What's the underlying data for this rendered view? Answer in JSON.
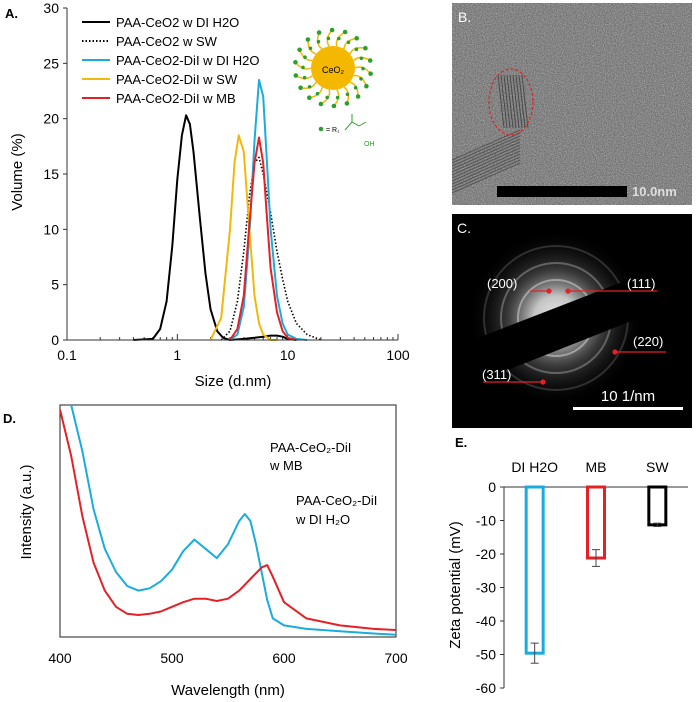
{
  "panels": {
    "a": {
      "label": "A."
    },
    "b": {
      "label": "B.",
      "scale_bar": "10.0nm"
    },
    "c": {
      "label": "C.",
      "scale_bar": "10 1/nm",
      "planes": [
        "(200)",
        "(111)",
        "(220)",
        "(311)"
      ]
    },
    "d": {
      "label": "D.",
      "annotation_mb": {
        "l1": "PAA-CeO₂-DiI",
        "l2": "w MB"
      },
      "annotation_h2o": {
        "l1": "PAA-CeO₂-DiI",
        "l2": "w DI H₂O"
      }
    },
    "e": {
      "label": "E."
    }
  },
  "schematic": {
    "core_label": "CeO₂",
    "key_label": "= R₁",
    "oh_label": "OH"
  },
  "chart_data": [
    {
      "id": "A",
      "type": "line",
      "xscale": "log",
      "xlabel": "Size (d.nm)",
      "ylabel": "Volume (%)",
      "xlim": [
        0.1,
        100
      ],
      "ylim": [
        0,
        30
      ],
      "xticks": [
        0.1,
        1,
        10,
        100
      ],
      "xtick_labels": [
        "0.1",
        "1",
        "10",
        "100"
      ],
      "yticks": [
        0,
        5,
        10,
        15,
        20,
        25,
        30
      ],
      "legend_position": "top-left",
      "series": [
        {
          "name": "PAA-CeO2 w DI H2O",
          "color": "#000000",
          "style": "solid",
          "x": [
            0.4,
            0.6,
            0.7,
            0.8,
            0.9,
            1.0,
            1.1,
            1.2,
            1.3,
            1.4,
            1.6,
            1.8,
            2.0,
            2.3,
            2.6,
            3.0,
            4.0,
            5.0,
            6.0,
            7.0,
            8.0,
            9.0,
            10.0,
            12.0
          ],
          "y": [
            0.0,
            0.1,
            1.0,
            3.5,
            8.5,
            14.5,
            18.5,
            20.3,
            19.5,
            17.0,
            11.0,
            6.0,
            2.8,
            0.8,
            0.2,
            0.0,
            0.1,
            0.2,
            0.3,
            0.4,
            0.4,
            0.3,
            0.1,
            0.0
          ]
        },
        {
          "name": "PAA-CeO2 w SW",
          "color": "#000000",
          "style": "dotted",
          "x": [
            2.5,
            3.0,
            3.5,
            4.0,
            4.5,
            5.0,
            5.5,
            6.0,
            7.0,
            8.0,
            9.0,
            10.0,
            12.0,
            15.0,
            20.0
          ],
          "y": [
            0.0,
            0.8,
            3.5,
            8.0,
            13.0,
            16.0,
            16.5,
            15.0,
            11.5,
            8.0,
            5.5,
            3.5,
            1.5,
            0.5,
            0.0
          ]
        },
        {
          "name": "PAA-CeO2-DiI w DI H2O",
          "color": "#1AACDE",
          "style": "solid",
          "x": [
            3.0,
            3.5,
            4.0,
            4.5,
            5.0,
            5.5,
            6.0,
            6.5,
            7.0,
            8.0,
            9.0,
            10.0,
            12.0,
            15.0
          ],
          "y": [
            0.0,
            0.5,
            3.0,
            9.5,
            18.0,
            23.5,
            22.0,
            16.0,
            10.0,
            4.0,
            1.5,
            0.5,
            0.1,
            0.0
          ]
        },
        {
          "name": "PAA-CeO2-DiI w SW",
          "color": "#F2B80C",
          "style": "solid",
          "x": [
            2.0,
            2.5,
            3.0,
            3.3,
            3.6,
            4.0,
            4.5,
            5.0,
            5.5,
            6.0,
            7.0,
            8.0
          ],
          "y": [
            0.0,
            2.0,
            10.0,
            16.0,
            18.5,
            17.0,
            10.0,
            4.0,
            1.5,
            0.5,
            0.0,
            0.0
          ]
        },
        {
          "name": "PAA-CeO2-DiI w MB",
          "color": "#E32126",
          "style": "solid",
          "x": [
            3.0,
            3.5,
            4.0,
            4.5,
            5.0,
            5.5,
            6.0,
            6.5,
            7.0,
            8.0,
            9.0,
            10.0,
            12.0
          ],
          "y": [
            0.0,
            1.0,
            4.0,
            10.5,
            16.0,
            18.3,
            16.0,
            11.0,
            6.5,
            2.5,
            0.8,
            0.2,
            0.0
          ]
        }
      ]
    },
    {
      "id": "D",
      "type": "line",
      "xlabel": "Wavelength (nm)",
      "ylabel": "Intensity (a.u.)",
      "xlim": [
        400,
        700
      ],
      "xticks": [
        400,
        500,
        600,
        700
      ],
      "ylim": [
        0,
        100
      ],
      "series": [
        {
          "name": "PAA-CeO2-DiI w MB",
          "color": "#1AACDE",
          "x": [
            410,
            420,
            430,
            440,
            450,
            460,
            470,
            480,
            490,
            500,
            510,
            520,
            530,
            540,
            550,
            560,
            565,
            570,
            575,
            580,
            585,
            590,
            600,
            620,
            650,
            680,
            700
          ],
          "y": [
            100,
            80,
            55,
            38,
            28,
            22,
            20,
            21,
            24,
            29,
            37,
            42,
            38,
            34,
            40,
            50,
            53,
            50,
            40,
            28,
            16,
            8,
            5,
            3.5,
            2.5,
            1.5,
            1
          ]
        },
        {
          "name": "PAA-CeO2-DiI w DI H2O",
          "color": "#E32126",
          "x": [
            400,
            410,
            420,
            430,
            440,
            450,
            460,
            470,
            480,
            490,
            500,
            510,
            520,
            530,
            540,
            550,
            560,
            570,
            580,
            585,
            590,
            600,
            620,
            650,
            680,
            700
          ],
          "y": [
            98,
            78,
            52,
            32,
            20,
            13,
            10,
            9.5,
            10,
            11,
            13,
            15,
            16.5,
            16.5,
            15.5,
            16.5,
            20,
            25,
            30,
            31,
            26,
            15,
            8,
            5,
            3.5,
            3
          ]
        }
      ]
    },
    {
      "id": "E",
      "type": "bar",
      "ylabel": "Zeta potential (mV)",
      "categories": [
        "DI H2O",
        "MB",
        "SW"
      ],
      "values": [
        -49.6,
        -21.2,
        -11.3
      ],
      "errors": [
        3.0,
        2.5,
        0.5
      ],
      "colors": [
        "#1AACDE",
        "#E32126",
        "#000000"
      ],
      "ylim": [
        -60,
        0
      ],
      "yticks": [
        0,
        -10,
        -20,
        -30,
        -40,
        -50,
        -60
      ]
    }
  ]
}
